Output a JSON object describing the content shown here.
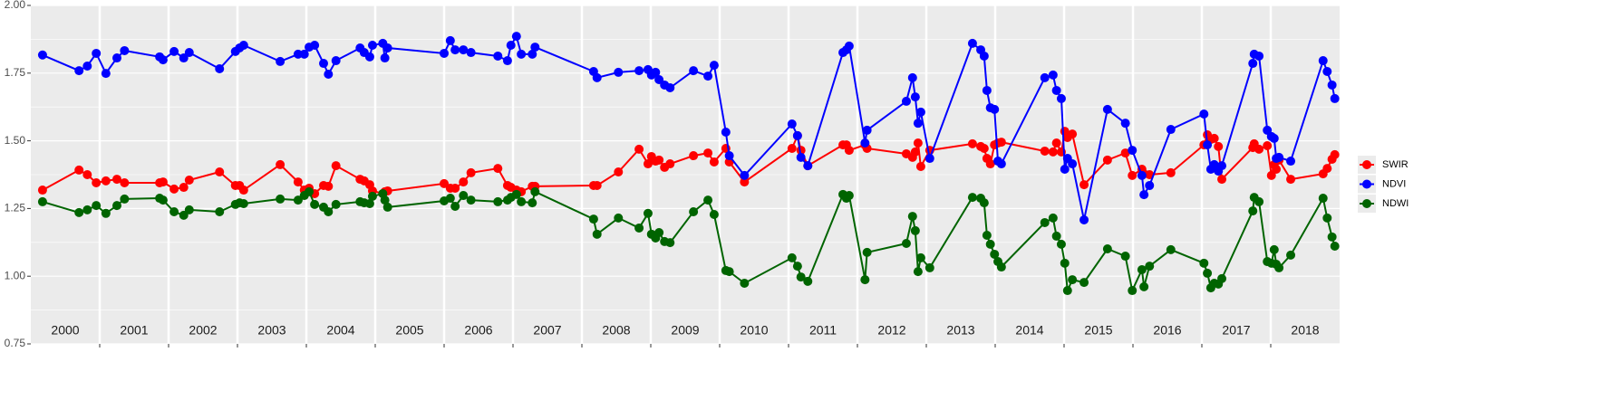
{
  "chart_data": {
    "type": "line",
    "x": [
      2000.17,
      2000.7,
      2000.82,
      2000.95,
      2001.09,
      2001.25,
      2001.36,
      2001.87,
      2001.92,
      2002.08,
      2002.22,
      2002.3,
      2002.74,
      2002.97,
      2003.03,
      2003.09,
      2003.62,
      2003.88,
      2003.97,
      2004.04,
      2004.12,
      2004.25,
      2004.32,
      2004.43,
      2004.78,
      2004.84,
      2004.92,
      2004.96,
      2005.11,
      2005.14,
      2005.18,
      2006.0,
      2006.09,
      2006.16,
      2006.28,
      2006.39,
      2006.78,
      2006.92,
      2006.97,
      2007.05,
      2007.12,
      2007.28,
      2007.32,
      2008.17,
      2008.22,
      2008.53,
      2008.83,
      2008.96,
      2009.01,
      2009.07,
      2009.12,
      2009.2,
      2009.28,
      2009.62,
      2009.83,
      2009.92,
      2010.09,
      2010.14,
      2010.36,
      2011.05,
      2011.13,
      2011.18,
      2011.28,
      2011.79,
      2011.84,
      2011.88,
      2012.11,
      2012.14,
      2012.71,
      2012.8,
      2012.84,
      2012.88,
      2012.92,
      2013.05,
      2013.67,
      2013.79,
      2013.84,
      2013.88,
      2013.93,
      2013.99,
      2014.04,
      2014.09,
      2014.72,
      2014.84,
      2014.89,
      2014.96,
      2015.01,
      2015.05,
      2015.12,
      2015.29,
      2015.63,
      2015.89,
      2015.99,
      2016.13,
      2016.16,
      2016.24,
      2016.55,
      2017.03,
      2017.08,
      2017.13,
      2017.18,
      2017.24,
      2017.29,
      2017.74,
      2017.76,
      2017.83,
      2017.95,
      2018.01,
      2018.05,
      2018.08,
      2018.12,
      2018.29,
      2018.76,
      2018.82,
      2018.89,
      2018.93
    ],
    "series": [
      {
        "name": "SWIR",
        "color": "#ff0000",
        "values": [
          1.318,
          1.392,
          1.375,
          1.345,
          1.352,
          1.358,
          1.345,
          1.345,
          1.348,
          1.322,
          1.328,
          1.355,
          1.385,
          1.335,
          1.335,
          1.318,
          1.412,
          1.348,
          1.318,
          1.325,
          1.305,
          1.335,
          1.332,
          1.408,
          1.358,
          1.352,
          1.338,
          1.315,
          1.305,
          1.312,
          1.315,
          1.342,
          1.325,
          1.325,
          1.348,
          1.382,
          1.398,
          1.335,
          1.328,
          1.318,
          1.312,
          1.332,
          1.332,
          1.335,
          1.335,
          1.385,
          1.469,
          1.415,
          1.442,
          1.425,
          1.429,
          1.402,
          1.415,
          1.445,
          1.455,
          1.422,
          1.472,
          1.422,
          1.348,
          1.472,
          1.519,
          1.465,
          1.408,
          1.485,
          1.485,
          1.465,
          1.485,
          1.472,
          1.452,
          1.439,
          1.459,
          1.492,
          1.405,
          1.465,
          1.489,
          1.479,
          1.472,
          1.435,
          1.415,
          1.485,
          1.492,
          1.495,
          1.462,
          1.459,
          1.492,
          1.459,
          1.535,
          1.512,
          1.525,
          1.338,
          1.429,
          1.455,
          1.372,
          1.395,
          1.378,
          1.375,
          1.382,
          1.485,
          1.522,
          1.505,
          1.509,
          1.479,
          1.358,
          1.475,
          1.489,
          1.469,
          1.482,
          1.372,
          1.412,
          1.395,
          1.429,
          1.358,
          1.378,
          1.398,
          1.432,
          1.449
        ]
      },
      {
        "name": "NDVI",
        "color": "#0000ff",
        "values": [
          1.817,
          1.759,
          1.776,
          1.823,
          1.749,
          1.806,
          1.833,
          1.81,
          1.799,
          1.83,
          1.806,
          1.826,
          1.766,
          1.83,
          1.843,
          1.853,
          1.793,
          1.82,
          1.82,
          1.846,
          1.853,
          1.786,
          1.746,
          1.796,
          1.843,
          1.826,
          1.81,
          1.853,
          1.86,
          1.806,
          1.843,
          1.823,
          1.87,
          1.836,
          1.836,
          1.826,
          1.813,
          1.796,
          1.853,
          1.886,
          1.82,
          1.82,
          1.846,
          1.756,
          1.733,
          1.753,
          1.759,
          1.763,
          1.743,
          1.753,
          1.726,
          1.706,
          1.696,
          1.759,
          1.739,
          1.779,
          1.532,
          1.445,
          1.372,
          1.562,
          1.519,
          1.439,
          1.408,
          1.826,
          1.836,
          1.85,
          1.492,
          1.539,
          1.646,
          1.733,
          1.662,
          1.565,
          1.606,
          1.435,
          1.86,
          1.836,
          1.813,
          1.686,
          1.622,
          1.616,
          1.425,
          1.415,
          1.733,
          1.743,
          1.686,
          1.656,
          1.395,
          1.435,
          1.415,
          1.208,
          1.616,
          1.565,
          1.465,
          1.372,
          1.301,
          1.335,
          1.542,
          1.599,
          1.485,
          1.395,
          1.412,
          1.388,
          1.408,
          1.786,
          1.82,
          1.813,
          1.539,
          1.516,
          1.509,
          1.435,
          1.439,
          1.425,
          1.796,
          1.756,
          1.706,
          1.656
        ]
      },
      {
        "name": "NDWI",
        "color": "#006400",
        "values": [
          1.275,
          1.235,
          1.245,
          1.261,
          1.232,
          1.261,
          1.285,
          1.288,
          1.281,
          1.238,
          1.225,
          1.245,
          1.238,
          1.265,
          1.271,
          1.268,
          1.285,
          1.281,
          1.298,
          1.312,
          1.265,
          1.255,
          1.238,
          1.265,
          1.275,
          1.271,
          1.268,
          1.295,
          1.305,
          1.281,
          1.255,
          1.278,
          1.288,
          1.258,
          1.298,
          1.281,
          1.275,
          1.281,
          1.291,
          1.302,
          1.275,
          1.271,
          1.312,
          1.211,
          1.155,
          1.215,
          1.178,
          1.232,
          1.155,
          1.141,
          1.161,
          1.128,
          1.124,
          1.238,
          1.281,
          1.228,
          1.021,
          1.017,
          0.974,
          1.068,
          1.037,
          0.997,
          0.981,
          1.302,
          1.288,
          1.298,
          0.987,
          1.088,
          1.121,
          1.221,
          1.168,
          1.017,
          1.068,
          1.031,
          1.291,
          1.288,
          1.271,
          1.151,
          1.118,
          1.081,
          1.054,
          1.034,
          1.198,
          1.215,
          1.148,
          1.118,
          1.048,
          0.947,
          0.987,
          0.977,
          1.101,
          1.074,
          0.947,
          1.024,
          0.961,
          1.037,
          1.098,
          1.048,
          1.011,
          0.957,
          0.974,
          0.971,
          0.991,
          1.241,
          1.291,
          1.275,
          1.054,
          1.048,
          1.098,
          1.044,
          1.031,
          1.078,
          1.288,
          1.215,
          1.145,
          1.111
        ]
      }
    ],
    "xlim": [
      2000,
      2019
    ],
    "xticks": [
      {
        "value": 2000.5,
        "label": "2000"
      },
      {
        "value": 2001.5,
        "label": "2001"
      },
      {
        "value": 2002.5,
        "label": "2002"
      },
      {
        "value": 2003.5,
        "label": "2003"
      },
      {
        "value": 2004.5,
        "label": "2004"
      },
      {
        "value": 2005.5,
        "label": "2005"
      },
      {
        "value": 2006.5,
        "label": "2006"
      },
      {
        "value": 2007.5,
        "label": "2007"
      },
      {
        "value": 2008.5,
        "label": "2008"
      },
      {
        "value": 2009.5,
        "label": "2009"
      },
      {
        "value": 2010.5,
        "label": "2010"
      },
      {
        "value": 2011.5,
        "label": "2011"
      },
      {
        "value": 2012.5,
        "label": "2012"
      },
      {
        "value": 2013.5,
        "label": "2013"
      },
      {
        "value": 2014.5,
        "label": "2014"
      },
      {
        "value": 2015.5,
        "label": "2015"
      },
      {
        "value": 2016.5,
        "label": "2016"
      },
      {
        "value": 2017.5,
        "label": "2017"
      },
      {
        "value": 2018.5,
        "label": "2018"
      }
    ],
    "year_lines": [
      2001,
      2002,
      2003,
      2004,
      2005,
      2006,
      2007,
      2008,
      2009,
      2010,
      2011,
      2012,
      2013,
      2014,
      2015,
      2016,
      2017,
      2018
    ],
    "ylim": [
      0.75,
      2.0
    ],
    "yticks": [
      {
        "value": 0.75,
        "label": "0.75"
      },
      {
        "value": 1.0,
        "label": "1.00"
      },
      {
        "value": 1.25,
        "label": "1.25"
      },
      {
        "value": 1.5,
        "label": "1.50"
      },
      {
        "value": 1.75,
        "label": "1.75"
      },
      {
        "value": 2.0,
        "label": "2.00"
      }
    ],
    "grid": true
  }
}
